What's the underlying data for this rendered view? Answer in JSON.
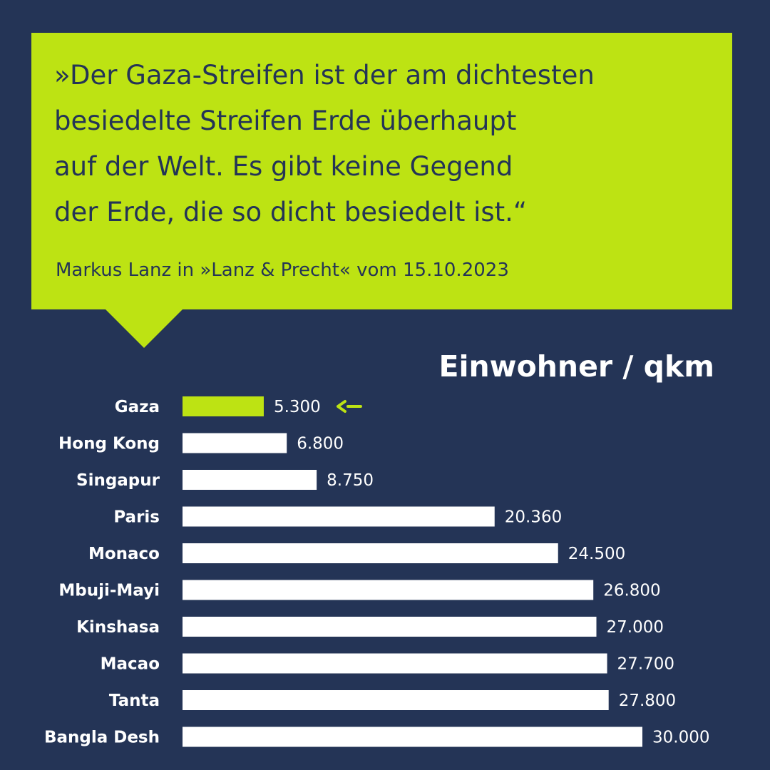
{
  "quote": {
    "text": "»Der Gaza-Streifen ist der am dichtesten\nbesiedelte Streifen Erde überhaupt\nauf der Welt. Es gibt keine Gegend\nder Erde, die so dicht besiedelt ist.“",
    "source": "Markus Lanz in »Lanz & Precht« vom 15.10.2023"
  },
  "colors": {
    "background": "#243456",
    "accent": "#bde313",
    "bar": "#ffffff"
  },
  "chart_data": {
    "type": "bar",
    "orientation": "horizontal",
    "title": "Einwohner / qkm",
    "categories": [
      "Gaza",
      "Hong Kong",
      "Singapur",
      "Paris",
      "Monaco",
      "Mbuji-Mayi",
      "Kinshasa",
      "Macao",
      "Tanta",
      "Bangla Desh"
    ],
    "values": [
      5300,
      6800,
      8750,
      20360,
      24500,
      26800,
      27000,
      27700,
      27800,
      30000
    ],
    "value_labels": [
      "5.300",
      "6.800",
      "8.750",
      "20.360",
      "24.500",
      "26.800",
      "27.000",
      "27.700",
      "27.800",
      "30.000"
    ],
    "highlight": "Gaza",
    "highlight_marker": "arrow-left",
    "xlim": [
      0,
      30000
    ],
    "grid": false,
    "legend": "none"
  }
}
